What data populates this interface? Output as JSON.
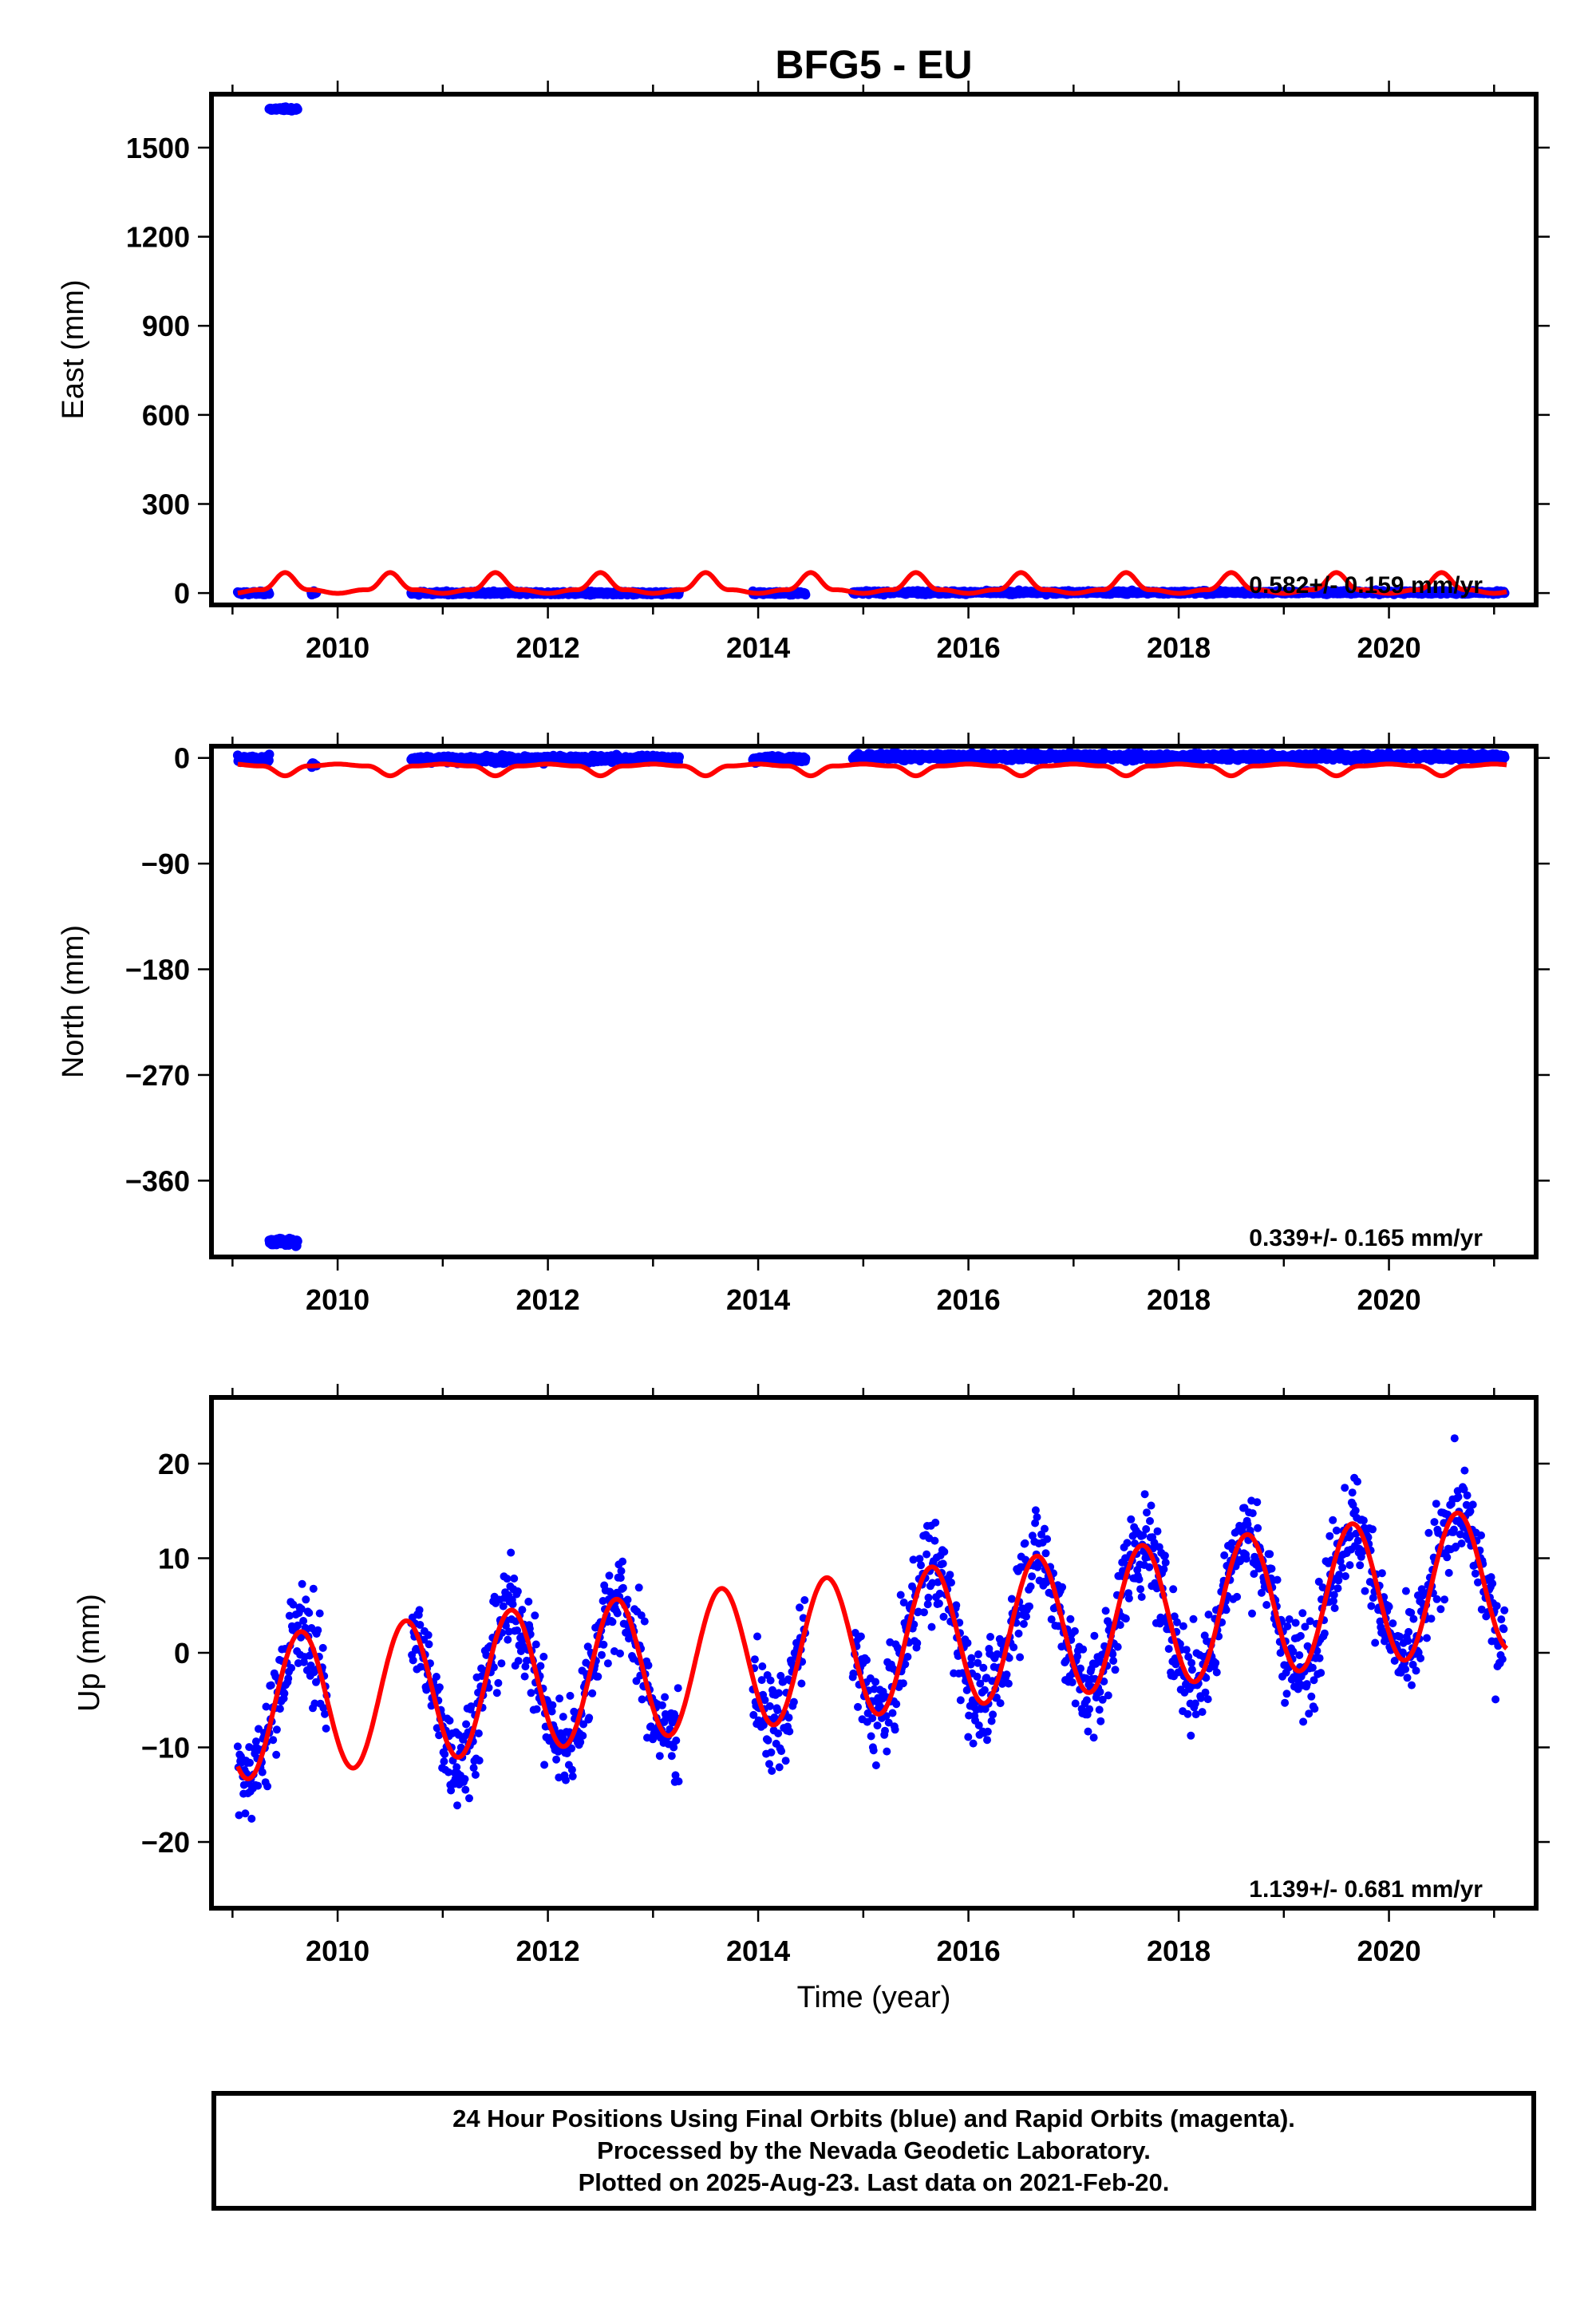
{
  "title": "BFG5 - EU",
  "colors": {
    "final_orbits": "#0000ff",
    "model": "#ff0000",
    "axes": "#000000"
  },
  "chart_data": [
    {
      "type": "scatter",
      "ylabel": "East (mm)",
      "xlim": [
        2008.8,
        2021.4
      ],
      "ylim": [
        -40,
        1680
      ],
      "yticks": [
        0,
        300,
        600,
        900,
        1200,
        1500
      ],
      "ytick_labels": [
        "0",
        "300",
        "600",
        "900",
        "1200",
        "1500"
      ],
      "xticks": [
        2010,
        2012,
        2014,
        2016,
        2018,
        2020
      ],
      "xtick_labels": [
        "2010",
        "2012",
        "2014",
        "2016",
        "2018",
        "2020"
      ],
      "rate_text": "0.582+/- 0.159 mm/yr",
      "data_segments": [
        {
          "x_range": [
            2009.05,
            2009.35
          ],
          "y_mean": 0
        },
        {
          "x_range": [
            2009.35,
            2009.62
          ],
          "y_mean": 1630
        },
        {
          "x_range": [
            2009.75,
            2009.8
          ],
          "y_mean": 0
        },
        {
          "x_range": [
            2010.7,
            2013.25
          ],
          "y_mean": 0
        },
        {
          "x_range": [
            2013.95,
            2014.45
          ],
          "y_mean": 0
        },
        {
          "x_range": [
            2014.9,
            2021.1
          ],
          "y_mean": 2
        }
      ],
      "model_curve": {
        "offset": 5,
        "trend_per_year": 0.58,
        "annual_amplitude": 40,
        "semiannual_amplitude": 30
      }
    },
    {
      "type": "scatter",
      "ylabel": "North (mm)",
      "xlim": [
        2008.8,
        2021.4
      ],
      "ylim": [
        -425,
        10
      ],
      "yticks": [
        0,
        -90,
        -180,
        -270,
        -360
      ],
      "ytick_labels": [
        "0",
        "−90",
        "−180",
        "−270",
        "−360"
      ],
      "xticks": [
        2010,
        2012,
        2014,
        2016,
        2018,
        2020
      ],
      "xtick_labels": [
        "2010",
        "2012",
        "2014",
        "2016",
        "2018",
        "2020"
      ],
      "rate_text": "0.339+/- 0.165 mm/yr",
      "data_segments": [
        {
          "x_range": [
            2009.05,
            2009.35
          ],
          "y_mean": -1
        },
        {
          "x_range": [
            2009.35,
            2009.62
          ],
          "y_mean": -412
        },
        {
          "x_range": [
            2009.75,
            2009.8
          ],
          "y_mean": -6
        },
        {
          "x_range": [
            2010.7,
            2013.25
          ],
          "y_mean": -1
        },
        {
          "x_range": [
            2013.95,
            2014.45
          ],
          "y_mean": -1
        },
        {
          "x_range": [
            2014.9,
            2021.1
          ],
          "y_mean": 1
        }
      ],
      "model_curve": {
        "offset": -6,
        "trend_per_year": 0.34,
        "annual_amplitude": 6,
        "semiannual_amplitude": 4
      }
    },
    {
      "type": "scatter",
      "ylabel": "Up (mm)",
      "xlabel": "Time (year)",
      "xlim": [
        2008.8,
        2021.4
      ],
      "ylim": [
        -27,
        27
      ],
      "yticks": [
        20,
        10,
        0,
        -10,
        -20
      ],
      "ytick_labels": [
        "20",
        "10",
        "0",
        "−10",
        "−20"
      ],
      "xticks": [
        2010,
        2012,
        2014,
        2016,
        2018,
        2020
      ],
      "xtick_labels": [
        "2010",
        "2012",
        "2014",
        "2016",
        "2018",
        "2020"
      ],
      "rate_text": "1.139+/- 0.681 mm/yr",
      "data_segments": [
        {
          "x_range": [
            2009.05,
            2009.9
          ],
          "y_mean": -7
        },
        {
          "x_range": [
            2010.7,
            2013.25
          ],
          "y_mean": -2
        },
        {
          "x_range": [
            2013.95,
            2014.45
          ],
          "y_mean": -2
        },
        {
          "x_range": [
            2014.9,
            2021.1
          ],
          "y_mean": 2
        }
      ],
      "model_curve": {
        "offset": -6,
        "trend_per_year": 1.14,
        "annual_amplitude": 7.5,
        "semiannual_amplitude": 0
      }
    }
  ],
  "footer": {
    "line1": "24 Hour Positions Using Final Orbits (blue) and Rapid Orbits (magenta).",
    "line2": "Processed by the Nevada Geodetic Laboratory.",
    "line3": "Plotted on 2025-Aug-23. Last data on 2021-Feb-20."
  }
}
